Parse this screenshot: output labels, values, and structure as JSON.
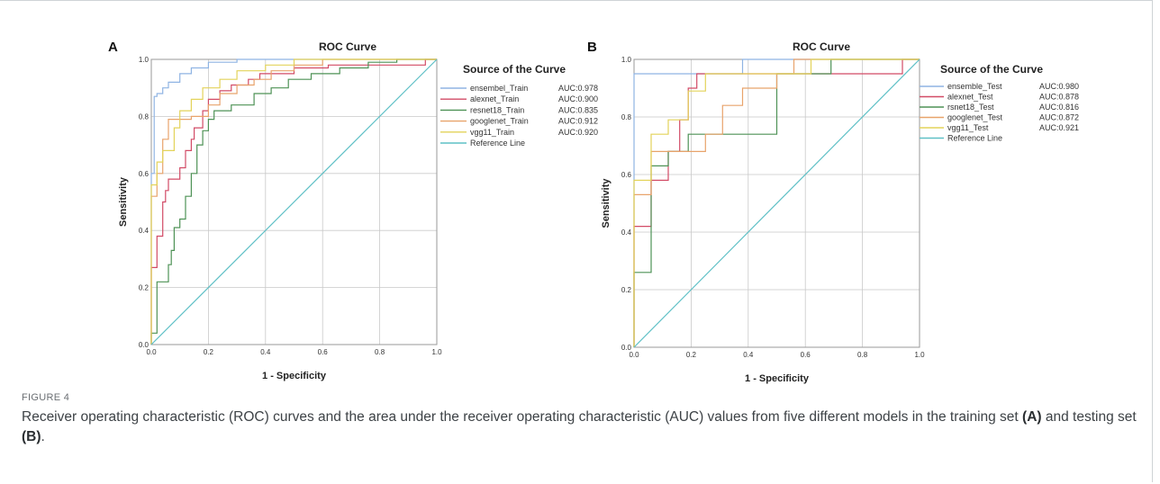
{
  "figure": {
    "label": "FIGURE 4",
    "caption_parts": [
      "Receiver operating characteristic (ROC) curves and the area under the receiver operating characteristic (AUC) values from five different models in the training set ",
      "(A)",
      " and testing set ",
      "(B)",
      "."
    ]
  },
  "chart_data": [
    {
      "panel": "A",
      "type": "line",
      "title": "ROC Curve",
      "xlabel": "1 - Specificity",
      "ylabel": "Sensitivity",
      "xlim": [
        0,
        1
      ],
      "ylim": [
        0,
        1
      ],
      "x_ticks": [
        "0.0",
        "0.2",
        "0.4",
        "0.6",
        "0.8",
        "1.0"
      ],
      "y_ticks": [
        "0.0",
        "0.2",
        "0.4",
        "0.6",
        "0.8",
        "1.0"
      ],
      "grid": true,
      "legend_title": "Source of the Curve",
      "legend_position": "right",
      "series": [
        {
          "name": "ensembel_Train",
          "auc_label": "AUC:0.978",
          "color": "#8fb4e3",
          "points": [
            [
              0,
              0
            ],
            [
              0,
              0.6
            ],
            [
              0.01,
              0.6
            ],
            [
              0.01,
              0.87
            ],
            [
              0.02,
              0.87
            ],
            [
              0.02,
              0.88
            ],
            [
              0.04,
              0.88
            ],
            [
              0.04,
              0.9
            ],
            [
              0.06,
              0.9
            ],
            [
              0.06,
              0.92
            ],
            [
              0.1,
              0.92
            ],
            [
              0.1,
              0.95
            ],
            [
              0.14,
              0.95
            ],
            [
              0.14,
              0.97
            ],
            [
              0.2,
              0.97
            ],
            [
              0.2,
              0.99
            ],
            [
              0.3,
              0.99
            ],
            [
              0.3,
              1
            ],
            [
              1,
              1
            ]
          ]
        },
        {
          "name": "alexnet_Train",
          "auc_label": "AUC:0.900",
          "color": "#d24b66",
          "points": [
            [
              0,
              0
            ],
            [
              0,
              0.27
            ],
            [
              0.02,
              0.27
            ],
            [
              0.02,
              0.38
            ],
            [
              0.04,
              0.38
            ],
            [
              0.04,
              0.5
            ],
            [
              0.05,
              0.5
            ],
            [
              0.05,
              0.54
            ],
            [
              0.06,
              0.54
            ],
            [
              0.06,
              0.58
            ],
            [
              0.1,
              0.58
            ],
            [
              0.1,
              0.62
            ],
            [
              0.12,
              0.62
            ],
            [
              0.12,
              0.68
            ],
            [
              0.14,
              0.68
            ],
            [
              0.14,
              0.72
            ],
            [
              0.15,
              0.72
            ],
            [
              0.15,
              0.76
            ],
            [
              0.18,
              0.76
            ],
            [
              0.18,
              0.82
            ],
            [
              0.2,
              0.82
            ],
            [
              0.2,
              0.86
            ],
            [
              0.24,
              0.86
            ],
            [
              0.24,
              0.89
            ],
            [
              0.28,
              0.89
            ],
            [
              0.28,
              0.91
            ],
            [
              0.34,
              0.91
            ],
            [
              0.34,
              0.93
            ],
            [
              0.38,
              0.93
            ],
            [
              0.38,
              0.95
            ],
            [
              0.5,
              0.95
            ],
            [
              0.5,
              0.97
            ],
            [
              0.62,
              0.97
            ],
            [
              0.62,
              0.98
            ],
            [
              0.96,
              0.98
            ],
            [
              0.96,
              1
            ],
            [
              1,
              1
            ]
          ]
        },
        {
          "name": "resnet18_Train",
          "auc_label": "AUC:0.835",
          "color": "#4e9256",
          "points": [
            [
              0,
              0
            ],
            [
              0,
              0.04
            ],
            [
              0.02,
              0.04
            ],
            [
              0.02,
              0.22
            ],
            [
              0.06,
              0.22
            ],
            [
              0.06,
              0.28
            ],
            [
              0.07,
              0.28
            ],
            [
              0.07,
              0.33
            ],
            [
              0.08,
              0.33
            ],
            [
              0.08,
              0.41
            ],
            [
              0.1,
              0.41
            ],
            [
              0.1,
              0.44
            ],
            [
              0.12,
              0.44
            ],
            [
              0.12,
              0.52
            ],
            [
              0.14,
              0.52
            ],
            [
              0.14,
              0.6
            ],
            [
              0.16,
              0.6
            ],
            [
              0.16,
              0.7
            ],
            [
              0.18,
              0.7
            ],
            [
              0.18,
              0.75
            ],
            [
              0.2,
              0.75
            ],
            [
              0.2,
              0.79
            ],
            [
              0.22,
              0.79
            ],
            [
              0.22,
              0.82
            ],
            [
              0.28,
              0.82
            ],
            [
              0.28,
              0.84
            ],
            [
              0.36,
              0.84
            ],
            [
              0.36,
              0.88
            ],
            [
              0.42,
              0.88
            ],
            [
              0.42,
              0.9
            ],
            [
              0.48,
              0.9
            ],
            [
              0.48,
              0.93
            ],
            [
              0.56,
              0.93
            ],
            [
              0.56,
              0.95
            ],
            [
              0.66,
              0.95
            ],
            [
              0.66,
              0.97
            ],
            [
              0.76,
              0.97
            ],
            [
              0.76,
              0.99
            ],
            [
              0.86,
              0.99
            ],
            [
              0.86,
              1
            ],
            [
              1,
              1
            ]
          ]
        },
        {
          "name": "googlenet_Train",
          "auc_label": "AUC:0.912",
          "color": "#e8a36b",
          "points": [
            [
              0,
              0
            ],
            [
              0,
              0.52
            ],
            [
              0.02,
              0.52
            ],
            [
              0.02,
              0.6
            ],
            [
              0.04,
              0.6
            ],
            [
              0.04,
              0.72
            ],
            [
              0.06,
              0.72
            ],
            [
              0.06,
              0.79
            ],
            [
              0.14,
              0.79
            ],
            [
              0.14,
              0.8
            ],
            [
              0.2,
              0.8
            ],
            [
              0.2,
              0.84
            ],
            [
              0.24,
              0.84
            ],
            [
              0.24,
              0.88
            ],
            [
              0.3,
              0.88
            ],
            [
              0.3,
              0.91
            ],
            [
              0.36,
              0.91
            ],
            [
              0.36,
              0.93
            ],
            [
              0.42,
              0.93
            ],
            [
              0.42,
              0.96
            ],
            [
              0.5,
              0.96
            ],
            [
              0.5,
              0.98
            ],
            [
              0.6,
              0.98
            ],
            [
              0.6,
              1
            ],
            [
              1,
              1
            ]
          ]
        },
        {
          "name": "vgg11_Train",
          "auc_label": "AUC:0.920",
          "color": "#e3d35a",
          "points": [
            [
              0,
              0
            ],
            [
              0,
              0.56
            ],
            [
              0.02,
              0.56
            ],
            [
              0.02,
              0.64
            ],
            [
              0.04,
              0.64
            ],
            [
              0.04,
              0.68
            ],
            [
              0.08,
              0.68
            ],
            [
              0.08,
              0.76
            ],
            [
              0.1,
              0.76
            ],
            [
              0.1,
              0.82
            ],
            [
              0.14,
              0.82
            ],
            [
              0.14,
              0.86
            ],
            [
              0.18,
              0.86
            ],
            [
              0.18,
              0.9
            ],
            [
              0.24,
              0.9
            ],
            [
              0.24,
              0.93
            ],
            [
              0.3,
              0.93
            ],
            [
              0.3,
              0.96
            ],
            [
              0.4,
              0.96
            ],
            [
              0.4,
              0.98
            ],
            [
              0.5,
              0.98
            ],
            [
              0.5,
              1
            ],
            [
              1,
              1
            ]
          ]
        },
        {
          "name": "Reference Line",
          "auc_label": "",
          "color": "#5fc0c6",
          "dashed": false,
          "points": [
            [
              0,
              0
            ],
            [
              1,
              1
            ]
          ]
        }
      ]
    },
    {
      "panel": "B",
      "type": "line",
      "title": "ROC Curve",
      "xlabel": "1 - Specificity",
      "ylabel": "Sensitivity",
      "xlim": [
        0,
        1
      ],
      "ylim": [
        0,
        1
      ],
      "x_ticks": [
        "0.0",
        "0.2",
        "0.4",
        "0.6",
        "0.8",
        "1.0"
      ],
      "y_ticks": [
        "0.0",
        "0.2",
        "0.4",
        "0.6",
        "0.8",
        "1.0"
      ],
      "grid": true,
      "legend_title": "Source of the Curve",
      "legend_position": "right",
      "series": [
        {
          "name": "ensemble_Test",
          "auc_label": "AUC:0.980",
          "color": "#8fb4e3",
          "points": [
            [
              0,
              0
            ],
            [
              0,
              0.95
            ],
            [
              0.38,
              0.95
            ],
            [
              0.38,
              1
            ],
            [
              1,
              1
            ]
          ]
        },
        {
          "name": "alexnet_Test",
          "auc_label": "AUC:0.878",
          "color": "#d24b66",
          "points": [
            [
              0,
              0
            ],
            [
              0,
              0.42
            ],
            [
              0.06,
              0.42
            ],
            [
              0.06,
              0.58
            ],
            [
              0.12,
              0.58
            ],
            [
              0.12,
              0.68
            ],
            [
              0.16,
              0.68
            ],
            [
              0.16,
              0.79
            ],
            [
              0.19,
              0.79
            ],
            [
              0.19,
              0.9
            ],
            [
              0.22,
              0.9
            ],
            [
              0.22,
              0.95
            ],
            [
              0.94,
              0.95
            ],
            [
              0.94,
              1
            ],
            [
              1,
              1
            ]
          ]
        },
        {
          "name": "rsnet18_Test",
          "auc_label": "AUC:0.816",
          "color": "#4e9256",
          "points": [
            [
              0,
              0
            ],
            [
              0,
              0.26
            ],
            [
              0.06,
              0.26
            ],
            [
              0.06,
              0.63
            ],
            [
              0.12,
              0.63
            ],
            [
              0.12,
              0.68
            ],
            [
              0.19,
              0.68
            ],
            [
              0.19,
              0.74
            ],
            [
              0.5,
              0.74
            ],
            [
              0.5,
              0.95
            ],
            [
              0.69,
              0.95
            ],
            [
              0.69,
              1
            ],
            [
              1,
              1
            ]
          ]
        },
        {
          "name": "googlenet_Test",
          "auc_label": "AUC:0.872",
          "color": "#e8a36b",
          "points": [
            [
              0,
              0
            ],
            [
              0,
              0.53
            ],
            [
              0.06,
              0.53
            ],
            [
              0.06,
              0.68
            ],
            [
              0.25,
              0.68
            ],
            [
              0.25,
              0.74
            ],
            [
              0.31,
              0.74
            ],
            [
              0.31,
              0.84
            ],
            [
              0.38,
              0.84
            ],
            [
              0.38,
              0.9
            ],
            [
              0.5,
              0.9
            ],
            [
              0.5,
              0.95
            ],
            [
              0.56,
              0.95
            ],
            [
              0.56,
              1
            ],
            [
              1,
              1
            ]
          ]
        },
        {
          "name": "vgg11_Test",
          "auc_label": "AUC:0.921",
          "color": "#e3d35a",
          "points": [
            [
              0,
              0
            ],
            [
              0,
              0.58
            ],
            [
              0.06,
              0.58
            ],
            [
              0.06,
              0.74
            ],
            [
              0.12,
              0.74
            ],
            [
              0.12,
              0.79
            ],
            [
              0.19,
              0.79
            ],
            [
              0.19,
              0.89
            ],
            [
              0.25,
              0.89
            ],
            [
              0.25,
              0.95
            ],
            [
              0.62,
              0.95
            ],
            [
              0.62,
              1
            ],
            [
              1,
              1
            ]
          ]
        },
        {
          "name": "Reference Line",
          "auc_label": "",
          "color": "#5fc0c6",
          "points": [
            [
              0,
              0
            ],
            [
              1,
              1
            ]
          ]
        }
      ]
    }
  ]
}
